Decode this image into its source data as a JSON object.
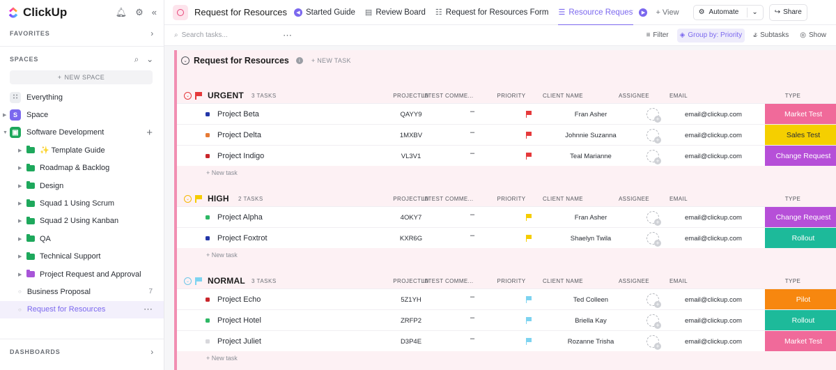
{
  "sidebar": {
    "brand": "ClickUp",
    "favorites_label": "FAVORITES",
    "spaces_label": "SPACES",
    "new_space_label": "NEW SPACE",
    "everything_label": "Everything",
    "space_label": "Space",
    "space_initial": "S",
    "software_dev_label": "Software Development",
    "folders": [
      {
        "label": "✨ Template Guide",
        "color": "#1ea85c"
      },
      {
        "label": "Roadmap & Backlog",
        "color": "#1ea85c"
      },
      {
        "label": "Design",
        "color": "#1ea85c"
      },
      {
        "label": "Squad 1 Using Scrum",
        "color": "#1ea85c"
      },
      {
        "label": "Squad 2 Using Kanban",
        "color": "#1ea85c"
      },
      {
        "label": "QA",
        "color": "#1ea85c"
      },
      {
        "label": "Technical Support",
        "color": "#1ea85c"
      },
      {
        "label": "Project Request and Approval",
        "color": "#a855d8"
      }
    ],
    "business_proposal": {
      "label": "Business Proposal",
      "count": "7"
    },
    "request_for_resources": "Request for Resources",
    "dashboards_label": "DASHBOARDS"
  },
  "topbar": {
    "title": "Request for Resources",
    "tabs": [
      {
        "label": "Started Guide",
        "icon": "arrow-left-icon"
      },
      {
        "label": "Review Board",
        "icon": "board-icon"
      },
      {
        "label": "Request for Resources Form",
        "icon": "form-icon"
      },
      {
        "label": "Resource Requests",
        "icon": "list-icon"
      }
    ],
    "add_view": "+ View",
    "automate": "Automate",
    "share": "Share"
  },
  "toolbar": {
    "search_placeholder": "Search tasks...",
    "filter": "Filter",
    "group_by": "Group by: Priority",
    "subtasks": "Subtasks",
    "show": "Show"
  },
  "list": {
    "title": "Request for Resources",
    "new_task": "+ NEW TASK",
    "add_task": "+ New task",
    "columns": [
      "PROJECT ID",
      "LATEST COMME...",
      "PRIORITY",
      "CLIENT NAME",
      "ASSIGNEE",
      "EMAIL",
      "TYPE"
    ],
    "groups": [
      {
        "name": "URGENT",
        "count": "3 TASKS",
        "color": "#e5393b",
        "flag_color": "#e5393b",
        "tasks": [
          {
            "name": "Project Beta",
            "sq": "#2336a8",
            "id": "QAYY9",
            "comment": "–",
            "client": "Fran Asher",
            "email": "email@clickup.com",
            "type": "Market Test",
            "type_color": "#f06a9a"
          },
          {
            "name": "Project Delta",
            "sq": "#e67a35",
            "id": "1MXBV",
            "comment": "–",
            "client": "Johnnie Suzanna",
            "email": "email@clickup.com",
            "type": "Sales Test",
            "type_color": "#f5cf00",
            "type_text": "#292d34"
          },
          {
            "name": "Project Indigo",
            "sq": "#c9262b",
            "id": "VL3V1",
            "comment": "–",
            "client": "Teal Marianne",
            "email": "email@clickup.com",
            "type": "Change Request",
            "type_color": "#b64fd8"
          }
        ]
      },
      {
        "name": "HIGH",
        "count": "2 TASKS",
        "color": "#f5b800",
        "flag_color": "#f5cc00",
        "tasks": [
          {
            "name": "Project Alpha",
            "sq": "#2eb865",
            "id": "4OKY7",
            "comment": "–",
            "client": "Fran Asher",
            "email": "email@clickup.com",
            "type": "Change Request",
            "type_color": "#b64fd8"
          },
          {
            "name": "Project Foxtrot",
            "sq": "#2336a8",
            "id": "KXR6G",
            "comment": "–",
            "client": "Shaelyn Twila",
            "email": "email@clickup.com",
            "type": "Rollout",
            "type_color": "#1dba9a"
          }
        ]
      },
      {
        "name": "NORMAL",
        "count": "3 TASKS",
        "color": "#6fc6e8",
        "flag_color": "#7dd3f0",
        "tasks": [
          {
            "name": "Project Echo",
            "sq": "#c9262b",
            "id": "5Z1YH",
            "comment": "–",
            "client": "Ted Colleen",
            "email": "email@clickup.com",
            "type": "Pilot",
            "type_color": "#f7870f"
          },
          {
            "name": "Project Hotel",
            "sq": "#2eb865",
            "id": "ZRFP2",
            "comment": "–",
            "client": "Briella Kay",
            "email": "email@clickup.com",
            "type": "Rollout",
            "type_color": "#1dba9a"
          },
          {
            "name": "Project Juliet",
            "sq": "#d8d8dc",
            "id": "D3P4E",
            "comment": "–",
            "client": "Rozanne Trisha",
            "email": "email@clickup.com",
            "type": "Market Test",
            "type_color": "#f06a9a"
          }
        ]
      }
    ]
  }
}
